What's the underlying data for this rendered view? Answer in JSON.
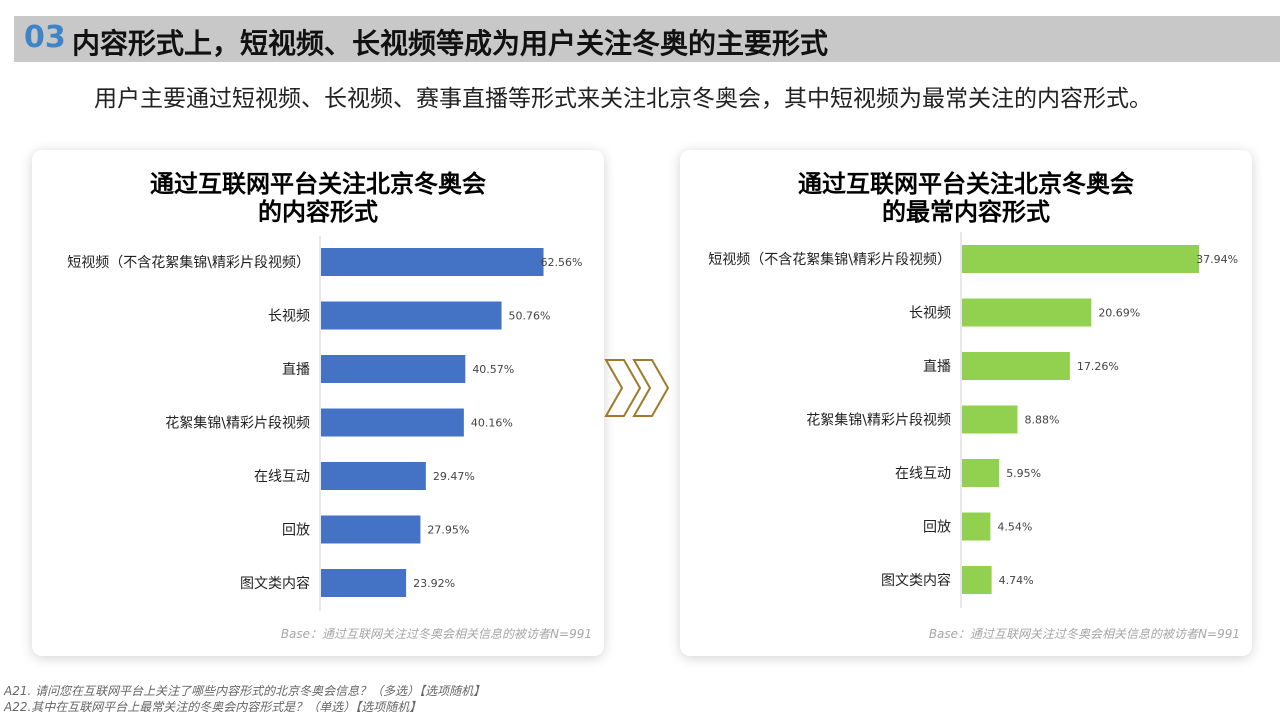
{
  "header": {
    "number": "03",
    "title": "内容形式上，短视频、长视频等成为用户关注冬奥的主要形式"
  },
  "intro": "用户主要通过短视频、长视频、赛事直播等形式来关注北京冬奥会，其中短视频为最常关注的内容形式。",
  "chart_data": [
    {
      "type": "bar",
      "orientation": "horizontal",
      "title": "通过互联网平台关注北京冬奥会\n的内容形式",
      "title_lines": [
        "通过互联网平台关注北京冬奥会",
        "的内容形式"
      ],
      "categories": [
        "短视频（不含花絮集锦\\精彩片段视频）",
        "长视频",
        "直播",
        "花絮集锦\\精彩片段视频",
        "在线互动",
        "回放",
        "图文类内容"
      ],
      "values": [
        62.56,
        50.76,
        40.57,
        40.16,
        29.47,
        27.95,
        23.92
      ],
      "labels": [
        "62.56%",
        "50.76%",
        "40.57%",
        "40.16%",
        "29.47%",
        "27.95%",
        "23.92%"
      ],
      "color": "#4472c4",
      "xlim": [
        0,
        70
      ],
      "base": "Base：通过互联网关注过冬奥会相关信息的被访者N=991"
    },
    {
      "type": "bar",
      "orientation": "horizontal",
      "title_lines": [
        "通过互联网平台关注北京冬奥会",
        "的最常内容形式"
      ],
      "categories": [
        "短视频（不含花絮集锦\\精彩片段视频）",
        "长视频",
        "直播",
        "花絮集锦\\精彩片段视频",
        "在线互动",
        "回放",
        "图文类内容"
      ],
      "values": [
        37.94,
        20.69,
        17.26,
        8.88,
        5.95,
        4.54,
        4.74
      ],
      "labels": [
        "37.94%",
        "20.69%",
        "17.26%",
        "8.88%",
        "5.95%",
        "4.54%",
        "4.74%"
      ],
      "color": "#92d050",
      "xlim": [
        0,
        40
      ],
      "base": "Base：通过互联网关注过冬奥会相关信息的被访者N=991"
    }
  ],
  "footnotes": [
    "A21. 请问您在互联网平台上关注了哪些内容形式的北京冬奥会信息？（多选）【选项随机】",
    "A22.其中在互联网平台上最常关注的冬奥会内容形式是？（单选）【选项随机】"
  ],
  "arrow_color": "#a07a2a"
}
